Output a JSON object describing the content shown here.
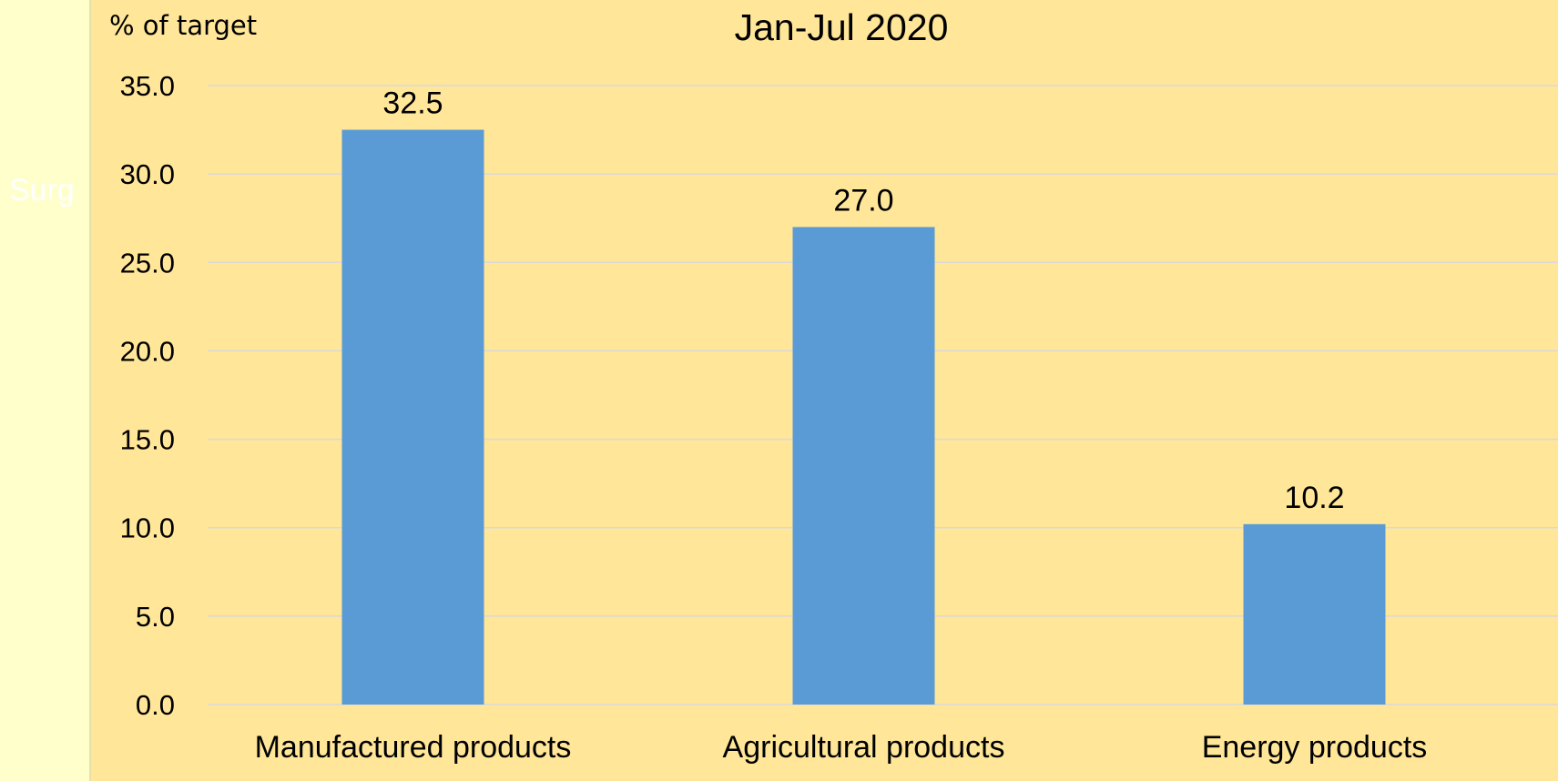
{
  "side_panel": {
    "text": "Surg"
  },
  "colors": {
    "background": "#FFE699",
    "bar": "#5B9BD5",
    "panel": "#FFFFCC"
  },
  "chart_data": {
    "type": "bar",
    "title": "Jan-Jul 2020",
    "ylabel": "% of target",
    "xlabel": "",
    "categories": [
      "Manufactured products",
      "Agricultural products",
      "Energy products"
    ],
    "values": [
      32.5,
      27.0,
      10.2
    ],
    "data_labels": [
      "32.5",
      "27.0",
      "10.2"
    ],
    "ylim": [
      0,
      35
    ],
    "yticks": [
      "0.0",
      "5.0",
      "10.0",
      "15.0",
      "20.0",
      "25.0",
      "30.0",
      "35.0"
    ],
    "grid": true,
    "legend": "none"
  }
}
